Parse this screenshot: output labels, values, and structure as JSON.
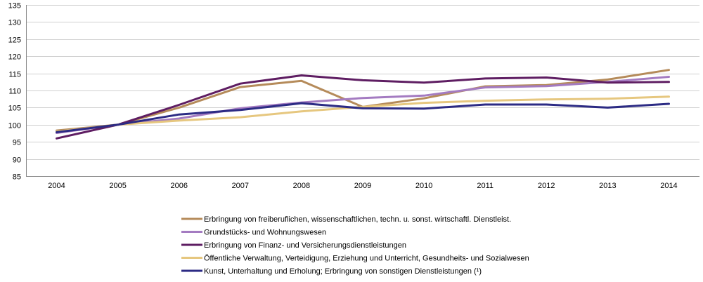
{
  "chart_data": {
    "type": "line",
    "title": "",
    "xlabel": "",
    "ylabel": "",
    "ylim": [
      85,
      135
    ],
    "yticks": [
      85,
      90,
      95,
      100,
      105,
      110,
      115,
      120,
      125,
      130,
      135
    ],
    "grid": true,
    "legend_position": "bottom",
    "categories": [
      "2004",
      "2005",
      "2006",
      "2007",
      "2008",
      "2009",
      "2010",
      "2011",
      "2012",
      "2013",
      "2014"
    ],
    "series": [
      {
        "name": "Erbringung von freiberuflichen, wissenschaftlichen, techn. u. sonst. wirtschaftl. Dienstleist.",
        "color": "#B58B5A",
        "values": [
          98.3,
          100.0,
          105.0,
          111.0,
          112.8,
          105.2,
          107.7,
          111.2,
          111.6,
          113.2,
          116.0
        ]
      },
      {
        "name": "Grundstücks- und Wohnungswesen",
        "color": "#A47BC1",
        "values": [
          97.6,
          100.0,
          101.8,
          104.8,
          106.5,
          107.8,
          108.5,
          110.9,
          111.3,
          112.5,
          114.0
        ]
      },
      {
        "name": "Erbringung von Finanz- und Versicherungsdienstleistungen",
        "color": "#5E1D62",
        "values": [
          96.0,
          100.0,
          105.8,
          112.0,
          114.4,
          113.0,
          112.3,
          113.5,
          113.8,
          112.3,
          112.5
        ]
      },
      {
        "name": "Öffentliche Verwaltung, Verteidigung, Erziehung und Unterricht, Gesundheits- und Sozialwesen",
        "color": "#E6C77F",
        "values": [
          98.0,
          100.0,
          101.2,
          102.2,
          103.9,
          105.2,
          106.4,
          107.0,
          107.4,
          107.6,
          108.2
        ]
      },
      {
        "name": "Kunst, Unterhaltung und Erholung; Erbringung von sonstigen Dienstleistungen (¹)",
        "color": "#2C2B84",
        "values": [
          97.8,
          100.0,
          103.0,
          104.3,
          106.3,
          104.8,
          104.7,
          105.9,
          105.9,
          105.0,
          106.1
        ]
      }
    ]
  }
}
